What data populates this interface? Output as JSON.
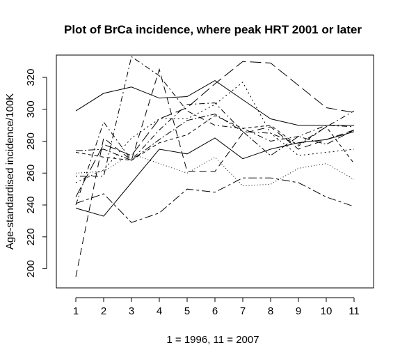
{
  "chart_data": {
    "type": "line",
    "title": "Plot of BrCa incidence, where peak HRT 2001 or later",
    "xlabel": "1 = 1996, 11 = 2007",
    "ylabel": "Age-standardised incidence/100K",
    "x": [
      1,
      2,
      3,
      4,
      5,
      6,
      7,
      8,
      9,
      10,
      11
    ],
    "xlim": [
      0.3,
      11.7
    ],
    "ylim": [
      188,
      334
    ],
    "y_ticks": [
      200,
      220,
      240,
      260,
      280,
      300,
      320
    ],
    "x_tick_labels": [
      "1",
      "2",
      "3",
      "4",
      "5",
      "6",
      "7",
      "8",
      "9",
      "10",
      "11"
    ],
    "y_tick_labels": [
      "200",
      "220",
      "240",
      "260",
      "280",
      "300",
      "320"
    ],
    "grid": false,
    "legend": "none",
    "series": [
      {
        "dash": "solid",
        "values": [
          299,
          310,
          314,
          307,
          308,
          318,
          306,
          294,
          290,
          290,
          290
        ]
      },
      {
        "dash": "solid",
        "values": [
          238,
          233,
          254,
          275,
          272,
          282,
          269,
          275,
          279,
          281,
          286
        ]
      },
      {
        "dash": "dash",
        "values": [
          195,
          282,
          268,
          325,
          261,
          261,
          285,
          289,
          275,
          281,
          287
        ]
      },
      {
        "dash": "dashdot",
        "values": [
          240,
          292,
          268,
          287,
          303,
          304,
          286,
          285,
          278,
          289,
          299
        ]
      },
      {
        "dash": "longdash",
        "values": [
          245,
          278,
          271,
          294,
          301,
          316,
          330,
          329,
          315,
          301,
          298
        ]
      },
      {
        "dash": "twodash",
        "values": [
          241,
          247,
          229,
          235,
          250,
          248,
          257,
          257,
          254,
          245,
          239
        ]
      },
      {
        "dash": "dotted",
        "values": [
          254,
          262,
          282,
          294,
          294,
          303,
          317,
          285,
          271,
          273,
          275
        ]
      },
      {
        "dash": "dotdash",
        "values": [
          258,
          258,
          333,
          321,
          299,
          290,
          288,
          280,
          283,
          290,
          289
        ]
      },
      {
        "dash": "shortdash",
        "values": [
          273,
          270,
          268,
          279,
          284,
          296,
          288,
          290,
          277,
          289,
          266
        ]
      },
      {
        "dash": "dashdot2",
        "values": [
          274,
          275,
          268,
          281,
          293,
          297,
          286,
          271,
          283,
          278,
          287
        ]
      },
      {
        "dash": "dotted2",
        "values": [
          260,
          261,
          272,
          266,
          260,
          270,
          252,
          253,
          263,
          266,
          256
        ]
      }
    ]
  }
}
